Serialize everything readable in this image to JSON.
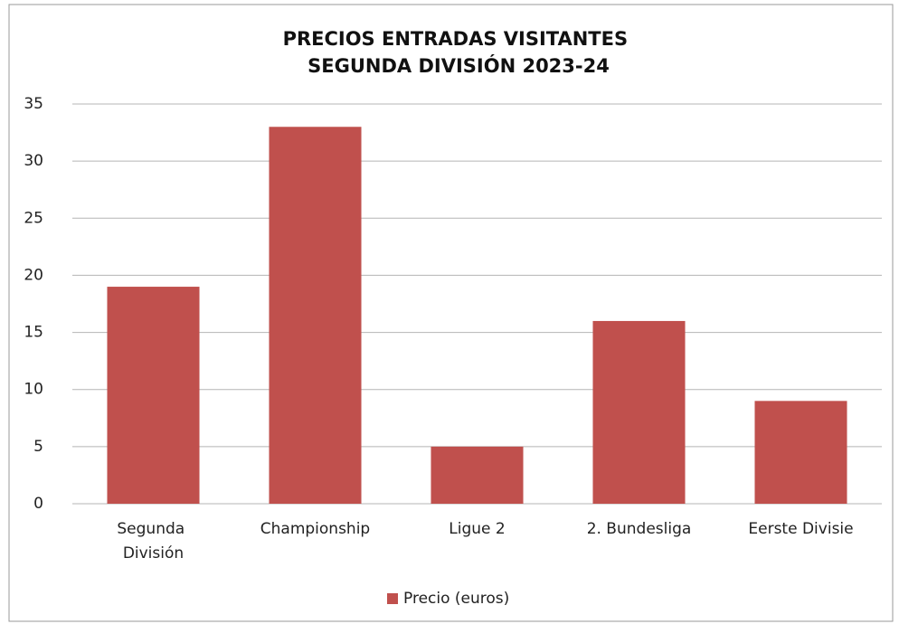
{
  "chart_data": {
    "type": "bar",
    "title": "PRECIOS ENTRADAS VISITANTES SEGUNDA DIVISIÓN 2023-24",
    "categories": [
      "Segunda División",
      "Championship",
      "Ligue 2",
      "2. Bundesliga",
      "Eerste Divisie"
    ],
    "series": [
      {
        "name": "Precio (euros)",
        "color": "#c0504d",
        "values": [
          19,
          33,
          5,
          16,
          9
        ]
      }
    ],
    "ylim": [
      0,
      35
    ],
    "yticks": [
      0,
      5,
      10,
      15,
      20,
      25,
      30,
      35
    ],
    "grid": true,
    "legend": "bottom"
  }
}
